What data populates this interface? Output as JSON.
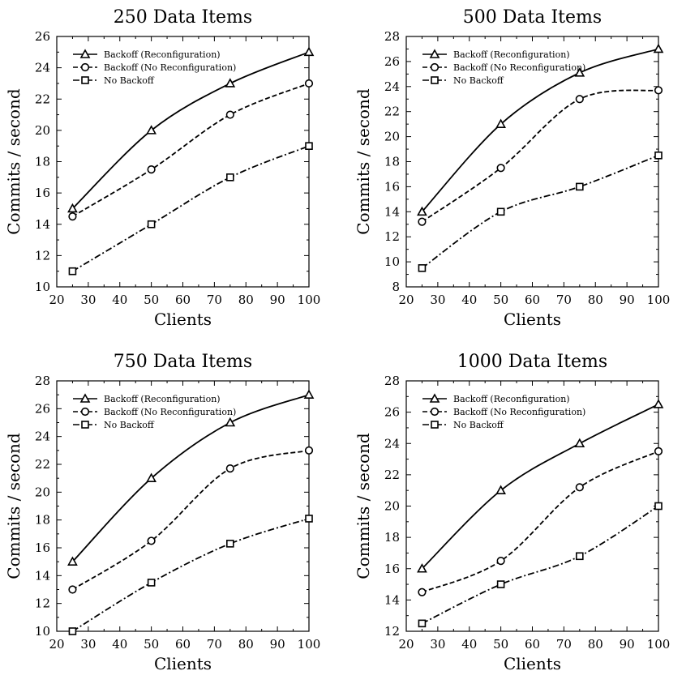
{
  "chart_data": [
    {
      "type": "line",
      "title": "250 Data Items",
      "xlabel": "Clients",
      "ylabel": "Commits / second",
      "x": [
        25,
        50,
        75,
        100
      ],
      "xlim": [
        20,
        100
      ],
      "ylim": [
        10,
        26
      ],
      "xticks": [
        20,
        30,
        40,
        50,
        60,
        70,
        80,
        90,
        100
      ],
      "yticks": [
        10,
        12,
        14,
        16,
        18,
        20,
        22,
        24,
        26
      ],
      "grid": false,
      "legend_position": "top-left",
      "series": [
        {
          "name": "Backoff (Reconfiguration)",
          "marker": "triangle",
          "dash": "solid",
          "values": [
            15,
            20,
            23,
            25
          ]
        },
        {
          "name": "Backoff (No Reconfiguration)",
          "marker": "circle",
          "dash": "dashed",
          "values": [
            14.5,
            17.5,
            21,
            23
          ]
        },
        {
          "name": "No Backoff",
          "marker": "square",
          "dash": "dashdot",
          "values": [
            11,
            14,
            17,
            19
          ]
        }
      ]
    },
    {
      "type": "line",
      "title": "500 Data Items",
      "xlabel": "Clients",
      "ylabel": "Commits / second",
      "x": [
        25,
        50,
        75,
        100
      ],
      "xlim": [
        20,
        100
      ],
      "ylim": [
        8,
        28
      ],
      "xticks": [
        20,
        30,
        40,
        50,
        60,
        70,
        80,
        90,
        100
      ],
      "yticks": [
        8,
        10,
        12,
        14,
        16,
        18,
        20,
        22,
        24,
        26,
        28
      ],
      "grid": false,
      "legend_position": "top-left",
      "series": [
        {
          "name": "Backoff (Reconfiguration)",
          "marker": "triangle",
          "dash": "solid",
          "values": [
            14,
            21,
            25.1,
            27
          ]
        },
        {
          "name": "Backoff (No Reconfiguration)",
          "marker": "circle",
          "dash": "dashed",
          "values": [
            13.2,
            17.5,
            23,
            23.7
          ]
        },
        {
          "name": "No Backoff",
          "marker": "square",
          "dash": "dashdot",
          "values": [
            9.5,
            14,
            16,
            18.5
          ]
        }
      ]
    },
    {
      "type": "line",
      "title": "750 Data Items",
      "xlabel": "Clients",
      "ylabel": "Commits / second",
      "x": [
        25,
        50,
        75,
        100
      ],
      "xlim": [
        20,
        100
      ],
      "ylim": [
        10,
        28
      ],
      "xticks": [
        20,
        30,
        40,
        50,
        60,
        70,
        80,
        90,
        100
      ],
      "yticks": [
        10,
        12,
        14,
        16,
        18,
        20,
        22,
        24,
        26,
        28
      ],
      "grid": false,
      "legend_position": "top-left",
      "series": [
        {
          "name": "Backoff (Reconfiguration)",
          "marker": "triangle",
          "dash": "solid",
          "values": [
            15,
            21,
            25,
            27
          ]
        },
        {
          "name": "Backoff (No Reconfiguration)",
          "marker": "circle",
          "dash": "dashed",
          "values": [
            13,
            16.5,
            21.7,
            23
          ]
        },
        {
          "name": "No Backoff",
          "marker": "square",
          "dash": "dashdot",
          "values": [
            10,
            13.5,
            16.3,
            18.1
          ]
        }
      ]
    },
    {
      "type": "line",
      "title": "1000 Data Items",
      "xlabel": "Clients",
      "ylabel": "Commits / second",
      "x": [
        25,
        50,
        75,
        100
      ],
      "xlim": [
        20,
        100
      ],
      "ylim": [
        12,
        28
      ],
      "xticks": [
        20,
        30,
        40,
        50,
        60,
        70,
        80,
        90,
        100
      ],
      "yticks": [
        12,
        14,
        16,
        18,
        20,
        22,
        24,
        26,
        28
      ],
      "grid": false,
      "legend_position": "top-left",
      "series": [
        {
          "name": "Backoff (Reconfiguration)",
          "marker": "triangle",
          "dash": "solid",
          "values": [
            16,
            21,
            24,
            26.5
          ]
        },
        {
          "name": "Backoff (No Reconfiguration)",
          "marker": "circle",
          "dash": "dashed",
          "values": [
            14.5,
            16.5,
            21.2,
            23.5
          ]
        },
        {
          "name": "No Backoff",
          "marker": "square",
          "dash": "dashdot",
          "values": [
            12.5,
            15,
            16.8,
            20
          ]
        }
      ]
    }
  ]
}
